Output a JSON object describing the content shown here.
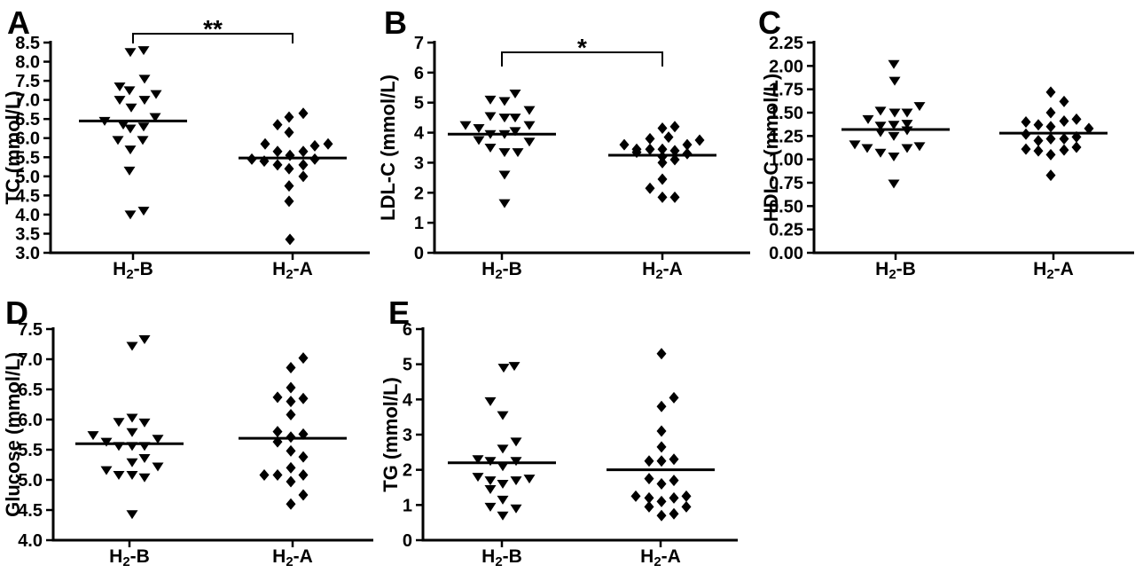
{
  "figure": {
    "background": "#ffffff",
    "ink": "#000000",
    "group_names": [
      "H2-B",
      "H2-A"
    ],
    "marker_legend": {
      "H2-B": "filled-down-triangle",
      "H2-A": "filled-diamond"
    }
  },
  "chart_data": [
    {
      "panel_label": "A",
      "type": "scatter",
      "ylabel": "TC (mmol/L)",
      "xlabel": "",
      "ylim": [
        3.0,
        8.5
      ],
      "yticks": [
        "3.0",
        "3.5",
        "4.0",
        "4.5",
        "5.0",
        "5.5",
        "6.0",
        "6.5",
        "7.0",
        "7.5",
        "8.0",
        "8.5"
      ],
      "categories": [
        {
          "base": "H",
          "sub": "2",
          "rest": "-B"
        },
        {
          "base": "H",
          "sub": "2",
          "rest": "-A"
        }
      ],
      "significance": {
        "label": "**",
        "from": 0,
        "to": 1
      },
      "series": [
        {
          "name": "H2-B",
          "marker": "triangle-down",
          "median": 6.45,
          "points": [
            [
              8.25,
              -3
            ],
            [
              8.3,
              12
            ],
            [
              7.55,
              13
            ],
            [
              7.35,
              -15
            ],
            [
              7.25,
              -4
            ],
            [
              7.0,
              -15
            ],
            [
              7.0,
              13
            ],
            [
              7.15,
              26
            ],
            [
              6.8,
              -2
            ],
            [
              6.45,
              -32
            ],
            [
              6.35,
              -11
            ],
            [
              6.55,
              25
            ],
            [
              6.25,
              -3
            ],
            [
              6.3,
              12
            ],
            [
              5.95,
              -17
            ],
            [
              5.95,
              11
            ],
            [
              5.7,
              -3
            ],
            [
              5.15,
              -4
            ],
            [
              4.0,
              -3
            ],
            [
              4.1,
              12
            ]
          ]
        },
        {
          "name": "H2-A",
          "marker": "diamond",
          "median": 5.48,
          "points": [
            [
              6.55,
              -4
            ],
            [
              6.65,
              12
            ],
            [
              6.35,
              -17
            ],
            [
              6.15,
              -4
            ],
            [
              5.85,
              -31
            ],
            [
              5.65,
              -17
            ],
            [
              5.8,
              25
            ],
            [
              5.85,
              40
            ],
            [
              5.45,
              -46
            ],
            [
              5.4,
              -32
            ],
            [
              5.3,
              -17
            ],
            [
              5.55,
              -3
            ],
            [
              5.65,
              12
            ],
            [
              5.3,
              12
            ],
            [
              5.45,
              25
            ],
            [
              5.2,
              -4
            ],
            [
              5.0,
              12
            ],
            [
              4.75,
              -4
            ],
            [
              4.35,
              -4
            ],
            [
              3.35,
              -3
            ]
          ]
        }
      ]
    },
    {
      "panel_label": "B",
      "type": "scatter",
      "ylabel": "LDL-C (mmol/L)",
      "xlabel": "",
      "ylim": [
        0,
        7
      ],
      "yticks": [
        "0",
        "1",
        "2",
        "3",
        "4",
        "5",
        "6",
        "7"
      ],
      "categories": [
        {
          "base": "H",
          "sub": "2",
          "rest": "-B"
        },
        {
          "base": "H",
          "sub": "2",
          "rest": "-A"
        }
      ],
      "significance": {
        "label": "*",
        "from": 0,
        "to": 1
      },
      "series": [
        {
          "name": "H2-B",
          "marker": "triangle-down",
          "median": 3.95,
          "points": [
            [
              5.1,
              -13
            ],
            [
              5.05,
              3
            ],
            [
              5.3,
              15
            ],
            [
              4.55,
              -13
            ],
            [
              4.5,
              3
            ],
            [
              4.5,
              15
            ],
            [
              4.75,
              31
            ],
            [
              4.25,
              -41
            ],
            [
              4.15,
              -26
            ],
            [
              3.95,
              -13
            ],
            [
              3.75,
              -26
            ],
            [
              3.5,
              -13
            ],
            [
              3.95,
              3
            ],
            [
              4.05,
              15
            ],
            [
              4.25,
              31
            ],
            [
              3.7,
              31
            ],
            [
              3.35,
              3
            ],
            [
              3.35,
              18
            ],
            [
              2.6,
              3
            ],
            [
              1.65,
              3
            ]
          ]
        },
        {
          "name": "H2-A",
          "marker": "diamond",
          "median": 3.25,
          "points": [
            [
              4.15,
              0
            ],
            [
              4.2,
              14
            ],
            [
              3.8,
              -14
            ],
            [
              3.85,
              7
            ],
            [
              3.75,
              42
            ],
            [
              3.6,
              -43
            ],
            [
              3.6,
              28
            ],
            [
              3.45,
              -29
            ],
            [
              3.35,
              -29
            ],
            [
              3.45,
              -14
            ],
            [
              3.45,
              0
            ],
            [
              3.4,
              14
            ],
            [
              3.3,
              28
            ],
            [
              3.2,
              0
            ],
            [
              3.1,
              14
            ],
            [
              3.0,
              0
            ],
            [
              2.45,
              0
            ],
            [
              2.15,
              -14
            ],
            [
              1.85,
              0
            ],
            [
              1.85,
              14
            ]
          ]
        }
      ]
    },
    {
      "panel_label": "C",
      "type": "scatter",
      "ylabel": "HDL-C (mmol/L)",
      "xlabel": "",
      "ylim": [
        0,
        2.25
      ],
      "yticks": [
        "0.00",
        "0.25",
        "0.50",
        "0.75",
        "1.00",
        "1.25",
        "1.50",
        "1.75",
        "2.00",
        "2.25"
      ],
      "categories": [
        {
          "base": "H",
          "sub": "2",
          "rest": "-B"
        },
        {
          "base": "H",
          "sub": "2",
          "rest": "-A"
        }
      ],
      "significance": null,
      "series": [
        {
          "name": "H2-B",
          "marker": "triangle-down",
          "median": 1.32,
          "points": [
            [
              2.02,
              -2
            ],
            [
              1.84,
              -1
            ],
            [
              1.57,
              27
            ],
            [
              1.52,
              -17
            ],
            [
              1.5,
              -1
            ],
            [
              1.5,
              13
            ],
            [
              1.43,
              -31
            ],
            [
              1.36,
              -17
            ],
            [
              1.37,
              -2
            ],
            [
              1.38,
              13
            ],
            [
              1.29,
              -17
            ],
            [
              1.25,
              -2
            ],
            [
              1.31,
              13
            ],
            [
              1.16,
              -46
            ],
            [
              1.12,
              -32
            ],
            [
              1.07,
              -17
            ],
            [
              1.03,
              -2
            ],
            [
              1.12,
              13
            ],
            [
              1.14,
              27
            ],
            [
              0.74,
              -2
            ]
          ]
        },
        {
          "name": "H2-A",
          "marker": "diamond",
          "median": 1.28,
          "points": [
            [
              1.72,
              -3
            ],
            [
              1.62,
              12
            ],
            [
              1.5,
              -3
            ],
            [
              1.41,
              12
            ],
            [
              1.43,
              26
            ],
            [
              1.4,
              -31
            ],
            [
              1.37,
              -17
            ],
            [
              1.35,
              -3
            ],
            [
              1.27,
              -31
            ],
            [
              1.2,
              -17
            ],
            [
              1.22,
              -3
            ],
            [
              1.22,
              12
            ],
            [
              1.24,
              26
            ],
            [
              1.33,
              40
            ],
            [
              1.11,
              -31
            ],
            [
              1.09,
              -17
            ],
            [
              1.05,
              -3
            ],
            [
              1.1,
              12
            ],
            [
              1.13,
              26
            ],
            [
              0.83,
              -3
            ]
          ]
        }
      ]
    },
    {
      "panel_label": "D",
      "type": "scatter",
      "ylabel": "Glucose (mmol/L)",
      "xlabel": "",
      "ylim": [
        4.0,
        7.5
      ],
      "yticks": [
        "4.0",
        "4.5",
        "5.0",
        "5.5",
        "6.0",
        "6.5",
        "7.0",
        "7.5"
      ],
      "categories": [
        {
          "base": "H",
          "sub": "2",
          "rest": "-B"
        },
        {
          "base": "H",
          "sub": "2",
          "rest": "-A"
        }
      ],
      "significance": null,
      "series": [
        {
          "name": "H2-B",
          "marker": "triangle-down",
          "median": 5.6,
          "points": [
            [
              7.22,
              3
            ],
            [
              7.33,
              17
            ],
            [
              5.96,
              -12
            ],
            [
              6.03,
              3
            ],
            [
              5.95,
              17
            ],
            [
              5.79,
              3
            ],
            [
              5.74,
              -41
            ],
            [
              5.63,
              -26
            ],
            [
              5.68,
              32
            ],
            [
              5.56,
              -12
            ],
            [
              5.56,
              3
            ],
            [
              5.56,
              17
            ],
            [
              5.36,
              17
            ],
            [
              5.29,
              3
            ],
            [
              5.22,
              32
            ],
            [
              5.16,
              -26
            ],
            [
              5.08,
              -12
            ],
            [
              5.08,
              3
            ],
            [
              5.04,
              17
            ],
            [
              4.43,
              3
            ]
          ]
        },
        {
          "name": "H2-A",
          "marker": "diamond",
          "median": 5.69,
          "points": [
            [
              7.02,
              12
            ],
            [
              6.86,
              -2
            ],
            [
              6.53,
              -2
            ],
            [
              6.37,
              -17
            ],
            [
              6.3,
              -2
            ],
            [
              6.35,
              12
            ],
            [
              6.08,
              -2
            ],
            [
              5.8,
              -17
            ],
            [
              5.71,
              -2
            ],
            [
              5.76,
              12
            ],
            [
              5.63,
              -17
            ],
            [
              5.48,
              -2
            ],
            [
              5.38,
              12
            ],
            [
              5.2,
              -2
            ],
            [
              5.08,
              -32
            ],
            [
              5.08,
              -17
            ],
            [
              4.97,
              -2
            ],
            [
              5.08,
              12
            ],
            [
              4.75,
              12
            ],
            [
              4.6,
              -2
            ]
          ]
        }
      ]
    },
    {
      "panel_label": "E",
      "type": "scatter",
      "ylabel": "TG (mmol/L)",
      "xlabel": "",
      "ylim": [
        0,
        6
      ],
      "yticks": [
        "0",
        "1",
        "2",
        "3",
        "4",
        "5",
        "6"
      ],
      "categories": [
        {
          "base": "H",
          "sub": "2",
          "rest": "-B"
        },
        {
          "base": "H",
          "sub": "2",
          "rest": "-A"
        }
      ],
      "significance": null,
      "series": [
        {
          "name": "H2-B",
          "marker": "triangle-down",
          "median": 2.2,
          "points": [
            [
              4.9,
              2
            ],
            [
              4.95,
              14
            ],
            [
              3.95,
              -13
            ],
            [
              3.55,
              1
            ],
            [
              2.8,
              16
            ],
            [
              2.6,
              1
            ],
            [
              2.3,
              -27
            ],
            [
              2.25,
              -13
            ],
            [
              2.25,
              16
            ],
            [
              2.1,
              1
            ],
            [
              1.8,
              -27
            ],
            [
              1.7,
              -13
            ],
            [
              1.45,
              -13
            ],
            [
              1.6,
              1
            ],
            [
              1.7,
              16
            ],
            [
              1.75,
              31
            ],
            [
              1.15,
              1
            ],
            [
              0.95,
              -13
            ],
            [
              0.9,
              16
            ],
            [
              0.7,
              1
            ]
          ]
        },
        {
          "name": "H2-A",
          "marker": "diamond",
          "median": 2.0,
          "points": [
            [
              5.3,
              1
            ],
            [
              4.05,
              15
            ],
            [
              3.8,
              1
            ],
            [
              3.1,
              1
            ],
            [
              2.65,
              1
            ],
            [
              2.25,
              -13
            ],
            [
              2.25,
              1
            ],
            [
              2.3,
              15
            ],
            [
              1.75,
              -13
            ],
            [
              1.6,
              1
            ],
            [
              1.7,
              15
            ],
            [
              1.25,
              -28
            ],
            [
              1.2,
              -13
            ],
            [
              0.95,
              -13
            ],
            [
              1.1,
              1
            ],
            [
              1.2,
              15
            ],
            [
              1.25,
              29
            ],
            [
              0.95,
              29
            ],
            [
              0.7,
              1
            ],
            [
              0.75,
              15
            ]
          ]
        }
      ]
    }
  ]
}
